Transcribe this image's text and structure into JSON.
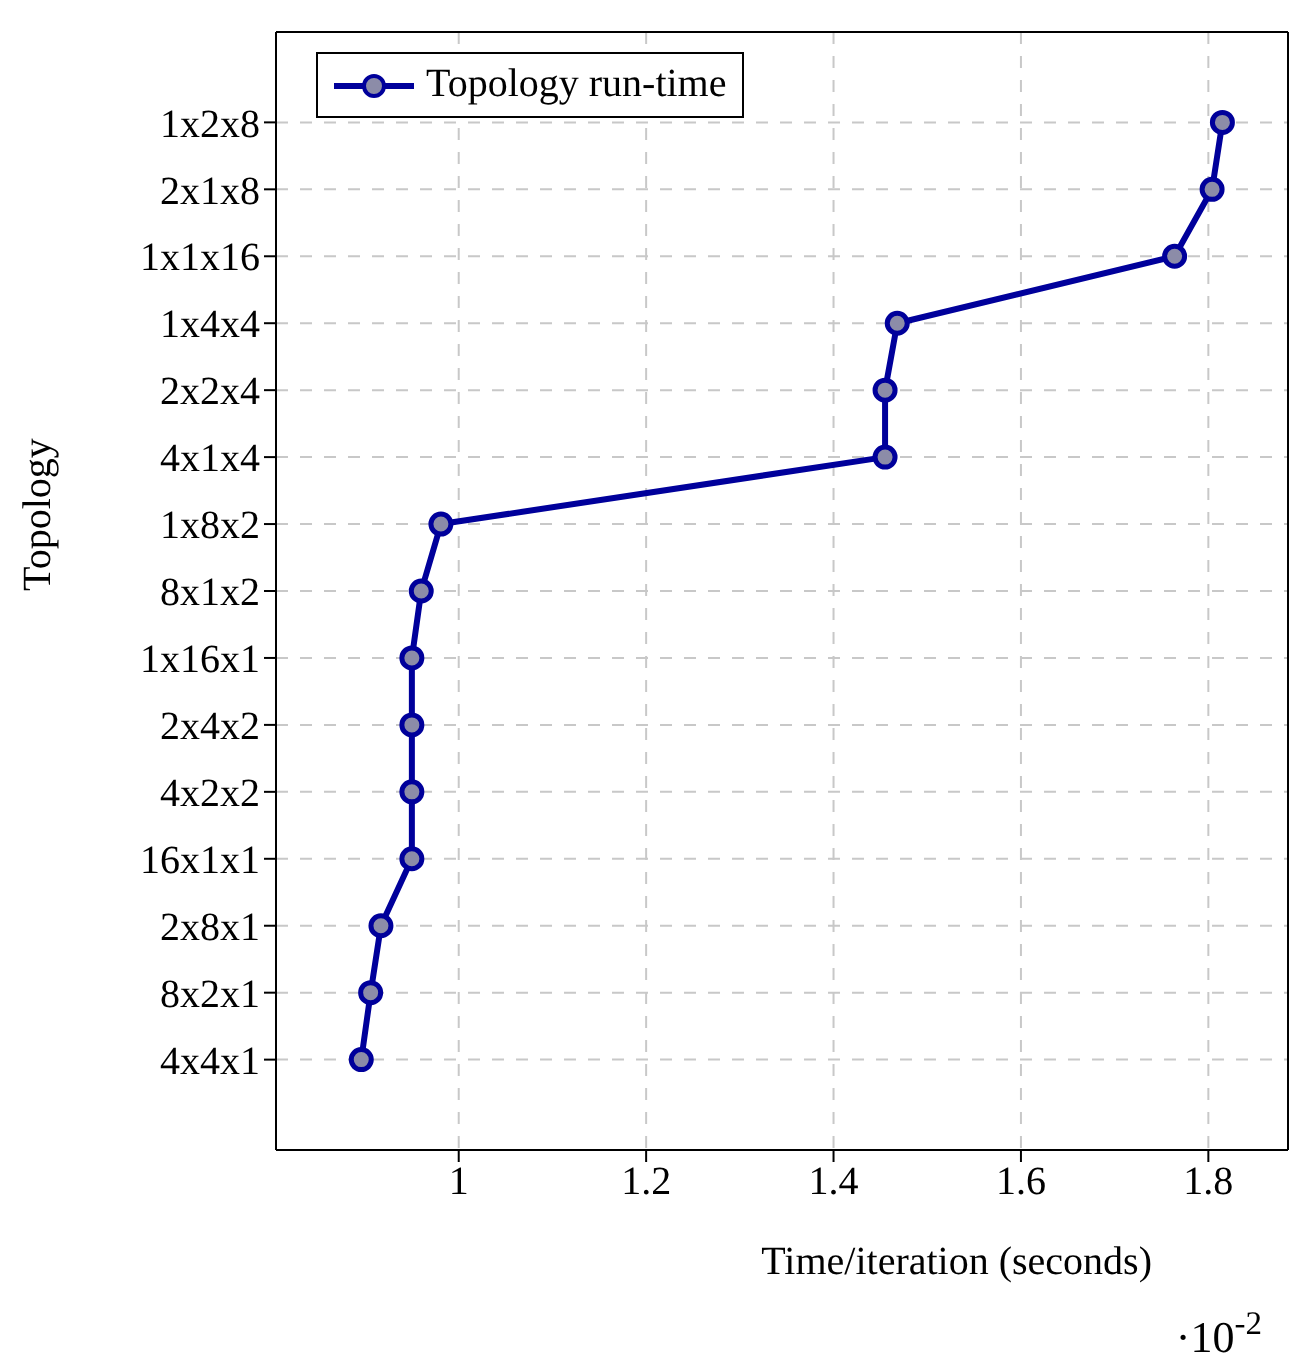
{
  "chart_data": {
    "type": "line",
    "orientation": "horizontal",
    "xlabel": "Time/iteration (seconds)",
    "ylabel": "Topology",
    "categories": [
      "1x2x8",
      "2x1x8",
      "1x1x16",
      "1x4x4",
      "2x2x4",
      "4x1x4",
      "1x8x2",
      "8x1x2",
      "1x16x1",
      "2x4x2",
      "4x2x2",
      "16x1x1",
      "2x8x1",
      "8x2x1",
      "4x4x1"
    ],
    "series": [
      {
        "name": "Topology run-time",
        "color": "#00009b",
        "values": [
          1.815,
          1.804,
          1.764,
          1.468,
          1.455,
          1.455,
          0.981,
          0.96,
          0.95,
          0.95,
          0.95,
          0.95,
          0.917,
          0.906,
          0.896
        ]
      }
    ],
    "xlim": [
      0.805,
      1.885
    ],
    "xticks": [
      1,
      1.2,
      1.4,
      1.6,
      1.8
    ],
    "annotations": [
      "·10$^{-2}$"
    ],
    "grid": true,
    "legend": "top left",
    "marker": "circle",
    "line_style": "solid"
  }
}
